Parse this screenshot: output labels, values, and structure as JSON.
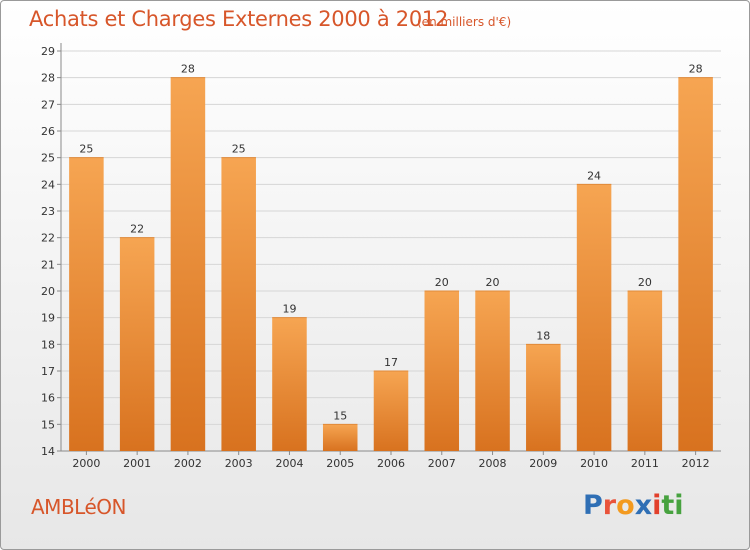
{
  "header": {
    "title": "Achats et Charges Externes 2000 à 2012",
    "subtitle": "(en milliers d'€)"
  },
  "footer": {
    "commune": "AMBLéON",
    "logo": {
      "text": "Proxiti",
      "letters": [
        {
          "ch": "P",
          "color": "#2f6fb5"
        },
        {
          "ch": "r",
          "color": "#e9533b"
        },
        {
          "ch": "o",
          "color": "#f39a1f"
        },
        {
          "ch": "x",
          "color": "#2f6fb5"
        },
        {
          "ch": "i",
          "color": "#e2402c"
        },
        {
          "ch": "t",
          "color": "#47a23f"
        },
        {
          "ch": "i",
          "color": "#47a23f"
        }
      ]
    }
  },
  "chart_data": {
    "type": "bar",
    "categories": [
      "2000",
      "2001",
      "2002",
      "2003",
      "2004",
      "2005",
      "2006",
      "2007",
      "2008",
      "2009",
      "2010",
      "2011",
      "2012"
    ],
    "values": [
      25,
      22,
      28,
      25,
      19,
      15,
      17,
      20,
      20,
      18,
      24,
      20,
      28
    ],
    "ylim": [
      14,
      29
    ],
    "yticks": [
      14,
      15,
      16,
      17,
      18,
      19,
      20,
      21,
      22,
      23,
      24,
      25,
      26,
      27,
      28,
      29
    ],
    "grid": true,
    "colors": {
      "bar_light": "#f6a552",
      "bar_dark": "#d8721f",
      "grid": "#d6d6d6",
      "axis": "#8a8a8a",
      "text": "#333333"
    }
  }
}
